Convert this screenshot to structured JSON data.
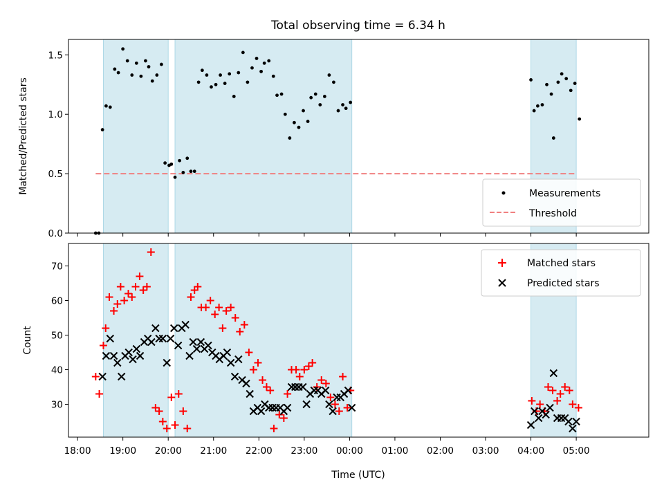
{
  "chart_data": [
    {
      "type": "scatter",
      "title": "Total observing time = 6.34 h",
      "ylabel": "Matched/Predicted stars",
      "xlim": [
        17.8,
        30.6
      ],
      "ylim": [
        0,
        1.63
      ],
      "yticks": [
        0.0,
        0.5,
        1.0,
        1.5
      ],
      "ytick_labels": [
        "0.0",
        "0.5",
        "1.0",
        "1.5"
      ],
      "shaded_intervals": [
        [
          18.57,
          20.0
        ],
        [
          20.15,
          24.05
        ],
        [
          28.0,
          29.0
        ]
      ],
      "threshold": {
        "name": "Threshold",
        "value": 0.5,
        "x_range": [
          18.4,
          29.0
        ],
        "color": "#f08080"
      },
      "series": [
        {
          "name": "Measurements",
          "color": "#000000",
          "x": [
            18.4,
            18.47,
            18.55,
            18.63,
            18.72,
            18.82,
            18.9,
            19.0,
            19.1,
            19.2,
            19.3,
            19.4,
            19.5,
            19.57,
            19.65,
            19.75,
            19.85,
            19.93,
            20.02,
            20.07,
            20.15,
            20.25,
            20.33,
            20.42,
            20.5,
            20.58,
            20.67,
            20.75,
            20.85,
            20.95,
            21.05,
            21.15,
            21.25,
            21.35,
            21.45,
            21.55,
            21.65,
            21.75,
            21.85,
            21.95,
            22.05,
            22.12,
            22.22,
            22.32,
            22.4,
            22.5,
            22.58,
            22.68,
            22.78,
            22.88,
            22.98,
            23.08,
            23.15,
            23.25,
            23.35,
            23.45,
            23.55,
            23.65,
            23.75,
            23.85,
            23.92,
            24.02,
            28.0,
            28.07,
            28.15,
            28.25,
            28.35,
            28.45,
            28.5,
            28.6,
            28.68,
            28.78,
            28.88,
            28.97,
            29.07
          ],
          "y": [
            0.0,
            0.0,
            0.87,
            1.07,
            1.06,
            1.38,
            1.35,
            1.55,
            1.45,
            1.33,
            1.43,
            1.32,
            1.45,
            1.4,
            1.28,
            1.33,
            1.42,
            0.59,
            0.57,
            0.58,
            0.47,
            0.61,
            0.51,
            0.63,
            0.52,
            0.52,
            1.27,
            1.37,
            1.33,
            1.23,
            1.25,
            1.33,
            1.26,
            1.34,
            1.15,
            1.35,
            1.52,
            1.27,
            1.39,
            1.47,
            1.36,
            1.43,
            1.45,
            1.32,
            1.16,
            1.17,
            1.0,
            0.8,
            0.93,
            0.89,
            1.03,
            0.94,
            1.14,
            1.17,
            1.08,
            1.15,
            1.33,
            1.27,
            1.03,
            1.08,
            1.05,
            1.1,
            1.29,
            1.03,
            1.07,
            1.08,
            1.25,
            1.17,
            0.8,
            1.27,
            1.34,
            1.3,
            1.2,
            1.26,
            0.96
          ]
        }
      ],
      "legend": {
        "position": "lower-right",
        "entries": [
          "Measurements",
          "Threshold"
        ]
      }
    },
    {
      "type": "scatter",
      "xlabel": "Time (UTC)",
      "ylabel": "Count",
      "xlim": [
        17.8,
        30.6
      ],
      "ylim": [
        20.5,
        76.5
      ],
      "yticks": [
        30,
        40,
        50,
        60,
        70
      ],
      "ytick_labels": [
        "30",
        "40",
        "50",
        "60",
        "70"
      ],
      "xticks": [
        18,
        19,
        20,
        21,
        22,
        23,
        24,
        25,
        26,
        27,
        28,
        29
      ],
      "xtick_labels": [
        "18:00",
        "19:00",
        "20:00",
        "21:00",
        "22:00",
        "23:00",
        "00:00",
        "01:00",
        "02:00",
        "03:00",
        "04:00",
        "05:00"
      ],
      "shaded_intervals": [
        [
          18.57,
          20.0
        ],
        [
          20.15,
          24.05
        ],
        [
          28.0,
          29.0
        ]
      ],
      "series": [
        {
          "name": "Matched stars",
          "marker": "plus",
          "color": "#ff0000",
          "x": [
            18.4,
            18.48,
            18.57,
            18.62,
            18.7,
            18.8,
            18.88,
            18.95,
            19.03,
            19.12,
            19.2,
            19.28,
            19.37,
            19.45,
            19.53,
            19.62,
            19.72,
            19.8,
            19.88,
            19.97,
            20.07,
            20.15,
            20.23,
            20.33,
            20.42,
            20.5,
            20.58,
            20.65,
            20.73,
            20.83,
            20.93,
            21.03,
            21.12,
            21.2,
            21.28,
            21.38,
            21.48,
            21.58,
            21.68,
            21.78,
            21.88,
            21.98,
            22.08,
            22.17,
            22.25,
            22.33,
            22.45,
            22.55,
            22.63,
            22.72,
            22.82,
            22.9,
            23.0,
            23.1,
            23.18,
            23.28,
            23.38,
            23.48,
            23.58,
            23.68,
            23.77,
            23.85,
            23.95,
            24.02,
            28.02,
            28.12,
            28.2,
            28.3,
            28.38,
            28.48,
            28.58,
            28.65,
            28.75,
            28.85,
            28.92,
            29.05
          ],
          "y": [
            38,
            33,
            47,
            52,
            61,
            57,
            59,
            64,
            60,
            62,
            61,
            64,
            67,
            63,
            64,
            74,
            29,
            28,
            25,
            23,
            32,
            24,
            33,
            28,
            23,
            61,
            63,
            64,
            58,
            58,
            60,
            56,
            58,
            52,
            57,
            58,
            55,
            51,
            53,
            45,
            40,
            42,
            37,
            35,
            34,
            23,
            27,
            26,
            33,
            40,
            40,
            38,
            40,
            41,
            42,
            35,
            37,
            36,
            32,
            30,
            28,
            38,
            29,
            34,
            31,
            28,
            30,
            28,
            35,
            34,
            31,
            33,
            35,
            34,
            30,
            29
          ]
        },
        {
          "name": "Predicted stars",
          "marker": "x",
          "color": "#000000",
          "x": [
            18.55,
            18.63,
            18.72,
            18.8,
            18.88,
            18.97,
            19.05,
            19.13,
            19.22,
            19.3,
            19.38,
            19.47,
            19.55,
            19.63,
            19.72,
            19.8,
            19.88,
            19.97,
            20.05,
            20.13,
            20.22,
            20.3,
            20.38,
            20.47,
            20.55,
            20.63,
            20.72,
            20.8,
            20.88,
            20.97,
            21.05,
            21.13,
            21.22,
            21.3,
            21.38,
            21.47,
            21.55,
            21.63,
            21.72,
            21.8,
            21.88,
            21.97,
            22.05,
            22.13,
            22.22,
            22.3,
            22.38,
            22.47,
            22.55,
            22.63,
            22.72,
            22.8,
            22.88,
            22.97,
            23.05,
            23.13,
            23.22,
            23.3,
            23.38,
            23.47,
            23.55,
            23.63,
            23.72,
            23.8,
            23.88,
            23.97,
            24.05,
            28.0,
            28.08,
            28.17,
            28.25,
            28.33,
            28.42,
            28.5,
            28.58,
            28.67,
            28.75,
            28.83,
            28.92,
            29.0
          ],
          "y": [
            38,
            44,
            49,
            44,
            42,
            38,
            44,
            45,
            43,
            46,
            44,
            48,
            49,
            48,
            52,
            49,
            49,
            42,
            49,
            52,
            47,
            52,
            53,
            44,
            48,
            46,
            48,
            46,
            47,
            45,
            44,
            43,
            44,
            45,
            42,
            38,
            43,
            37,
            36,
            33,
            28,
            29,
            28,
            30,
            29,
            29,
            29,
            29,
            28,
            29,
            35,
            35,
            35,
            35,
            30,
            33,
            34,
            34,
            33,
            34,
            30,
            28,
            32,
            32,
            33,
            34,
            29,
            24,
            28,
            26,
            28,
            27,
            29,
            39,
            26,
            26,
            26,
            25,
            23,
            25
          ]
        }
      ],
      "legend": {
        "position": "upper-right",
        "entries": [
          "Matched stars",
          "Predicted stars"
        ]
      }
    }
  ]
}
